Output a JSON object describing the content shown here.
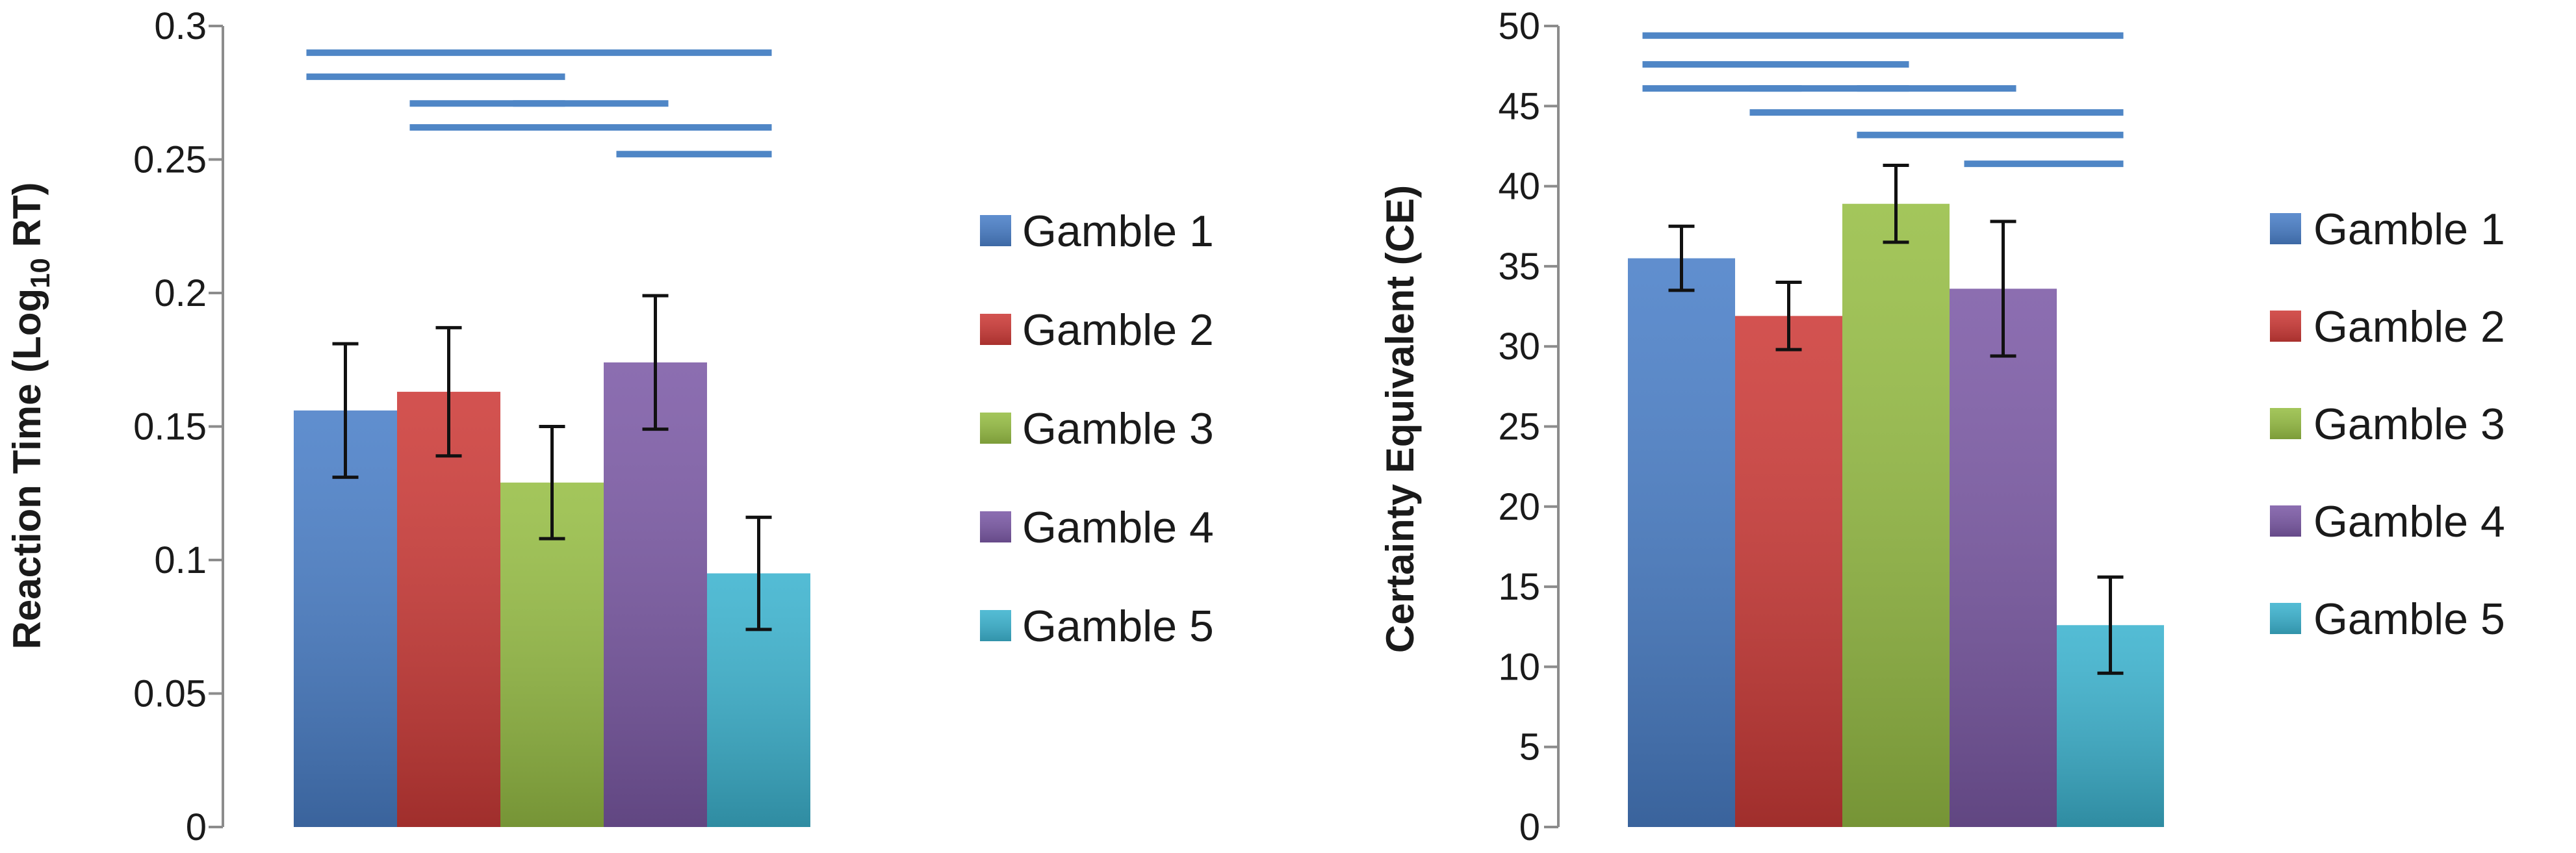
{
  "chart_data": [
    {
      "type": "bar",
      "ylabel": "Reaction Time (Log10 RT)",
      "ylabel_parts": {
        "main": "Reaction Time (Log",
        "subscript": "10",
        "tail": " RT)"
      },
      "ylim": [
        0,
        0.3
      ],
      "yticks": [
        "0",
        "0.05",
        "0.1",
        "0.15",
        "0.2",
        "0.25",
        "0.3"
      ],
      "ytick_values": [
        0,
        0.05,
        0.1,
        0.15,
        0.2,
        0.25,
        0.3
      ],
      "grid": false,
      "legend_position": "right",
      "series": [
        {
          "name": "Gamble 1",
          "value": 0.156,
          "error": 0.025,
          "color": "#4a7fc8"
        },
        {
          "name": "Gamble 2",
          "value": 0.163,
          "error": 0.024,
          "color": "#cd3b38"
        },
        {
          "name": "Gamble 3",
          "value": 0.129,
          "error": 0.021,
          "color": "#97be45"
        },
        {
          "name": "Gamble 4",
          "value": 0.174,
          "error": 0.025,
          "color": "#7c5aa6"
        },
        {
          "name": "Gamble 5",
          "value": 0.095,
          "error": 0.021,
          "color": "#3cb3cf"
        }
      ],
      "significance": [
        {
          "from": 1,
          "to": 5,
          "y": 0.29
        },
        {
          "from": 1,
          "to": 3,
          "y": 0.281
        },
        {
          "from": 2,
          "to": 3,
          "y": 0.271
        },
        {
          "from": 3,
          "to": 4,
          "y": 0.271
        },
        {
          "from": 2,
          "to": 5,
          "y": 0.262
        },
        {
          "from": 4,
          "to": 5,
          "y": 0.252
        }
      ]
    },
    {
      "type": "bar",
      "ylabel": "Certainty Equivalent (CE)",
      "ylim": [
        0,
        50
      ],
      "yticks": [
        "0",
        "5",
        "10",
        "15",
        "20",
        "25",
        "30",
        "35",
        "40",
        "45",
        "50"
      ],
      "ytick_values": [
        0,
        5,
        10,
        15,
        20,
        25,
        30,
        35,
        40,
        45,
        50
      ],
      "grid": false,
      "legend_position": "right",
      "series": [
        {
          "name": "Gamble 1",
          "value": 35.5,
          "error": 2.0,
          "color": "#4a7fc8"
        },
        {
          "name": "Gamble 2",
          "value": 31.9,
          "error": 2.1,
          "color": "#cd3b38"
        },
        {
          "name": "Gamble 3",
          "value": 38.9,
          "error": 2.4,
          "color": "#97be45"
        },
        {
          "name": "Gamble 4",
          "value": 33.6,
          "error": 4.2,
          "color": "#7c5aa6"
        },
        {
          "name": "Gamble 5",
          "value": 12.6,
          "error": 3.0,
          "color": "#3cb3cf"
        }
      ],
      "significance": [
        {
          "from": 1,
          "to": 5,
          "y": 49.4
        },
        {
          "from": 1,
          "to": 3,
          "y": 47.6
        },
        {
          "from": 1,
          "to": 2,
          "y": 46.1
        },
        {
          "from": 2,
          "to": 3,
          "y": 46.1
        },
        {
          "from": 3,
          "to": 4,
          "y": 46.1
        },
        {
          "from": 2,
          "to": 5,
          "y": 44.6
        },
        {
          "from": 3,
          "to": 5,
          "y": 43.2
        },
        {
          "from": 4,
          "to": 5,
          "y": 41.4
        }
      ]
    }
  ]
}
